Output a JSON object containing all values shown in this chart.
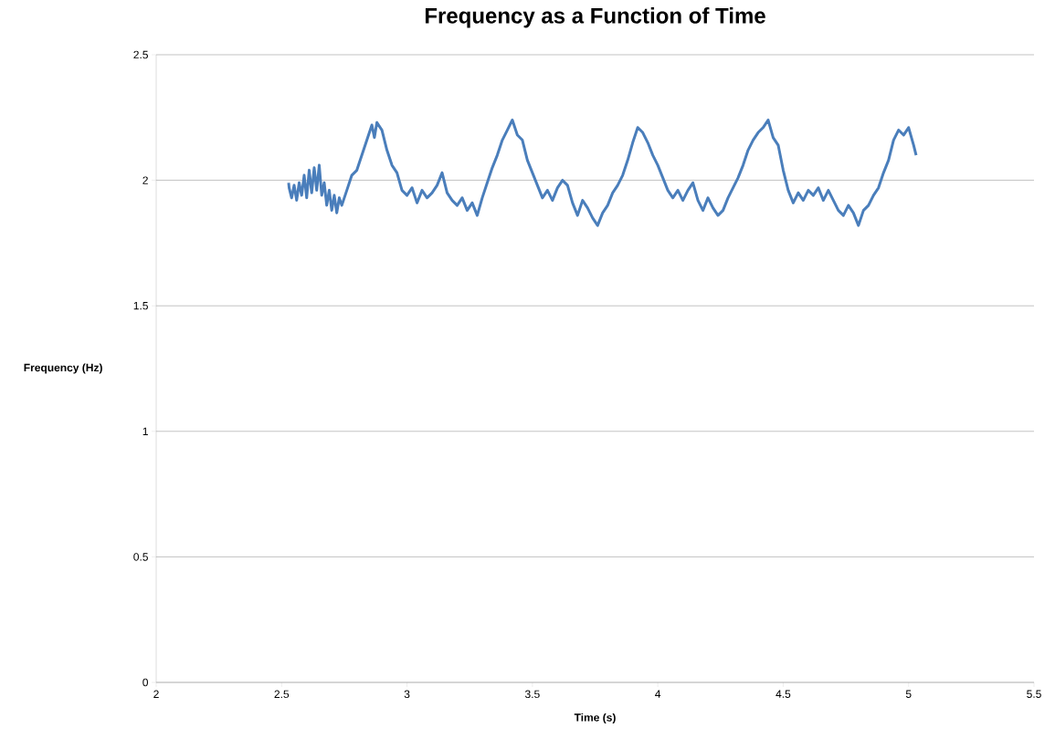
{
  "chart_data": {
    "type": "line",
    "title": "Frequency as a Function of Time",
    "xlabel": "Time (s)",
    "ylabel": "Frequency (Hz)",
    "xlim": [
      2,
      5.5
    ],
    "xticks": [
      2,
      2.5,
      3,
      3.5,
      4,
      4.5,
      5,
      5.5
    ],
    "ylim": [
      0,
      2.5
    ],
    "yticks": [
      0,
      0.5,
      1,
      1.5,
      2,
      2.5
    ],
    "grid": "y",
    "marker": "none",
    "line_style": "solid",
    "series": [
      {
        "color": "#4a7ebb",
        "x": [
          2.528,
          2.53,
          2.54,
          2.55,
          2.56,
          2.57,
          2.58,
          2.59,
          2.6,
          2.61,
          2.62,
          2.63,
          2.64,
          2.65,
          2.66,
          2.67,
          2.68,
          2.69,
          2.7,
          2.71,
          2.72,
          2.73,
          2.74,
          2.76,
          2.78,
          2.8,
          2.82,
          2.84,
          2.86,
          2.87,
          2.88,
          2.9,
          2.92,
          2.94,
          2.96,
          2.98,
          3.0,
          3.02,
          3.04,
          3.06,
          3.08,
          3.1,
          3.12,
          3.14,
          3.16,
          3.18,
          3.2,
          3.22,
          3.24,
          3.26,
          3.28,
          3.3,
          3.32,
          3.34,
          3.36,
          3.38,
          3.4,
          3.42,
          3.44,
          3.46,
          3.48,
          3.5,
          3.52,
          3.54,
          3.56,
          3.58,
          3.6,
          3.62,
          3.64,
          3.66,
          3.68,
          3.7,
          3.72,
          3.74,
          3.76,
          3.78,
          3.8,
          3.82,
          3.84,
          3.86,
          3.88,
          3.9,
          3.92,
          3.94,
          3.96,
          3.98,
          4.0,
          4.02,
          4.04,
          4.06,
          4.08,
          4.1,
          4.12,
          4.14,
          4.16,
          4.18,
          4.2,
          4.22,
          4.24,
          4.26,
          4.28,
          4.3,
          4.32,
          4.34,
          4.36,
          4.38,
          4.4,
          4.42,
          4.44,
          4.46,
          4.48,
          4.5,
          4.52,
          4.54,
          4.56,
          4.58,
          4.6,
          4.62,
          4.64,
          4.66,
          4.68,
          4.7,
          4.72,
          4.74,
          4.76,
          4.78,
          4.8,
          4.82,
          4.84,
          4.86,
          4.88,
          4.9,
          4.92,
          4.94,
          4.96,
          4.98,
          5.0,
          5.02,
          5.03
        ],
        "values": [
          1.99,
          1.97,
          1.93,
          1.98,
          1.92,
          1.99,
          1.94,
          2.02,
          1.93,
          2.04,
          1.95,
          2.05,
          1.96,
          2.06,
          1.94,
          1.99,
          1.9,
          1.96,
          1.88,
          1.94,
          1.87,
          1.93,
          1.9,
          1.96,
          2.02,
          2.04,
          2.1,
          2.16,
          2.22,
          2.17,
          2.23,
          2.2,
          2.12,
          2.06,
          2.03,
          1.96,
          1.94,
          1.97,
          1.91,
          1.96,
          1.93,
          1.95,
          1.98,
          2.03,
          1.95,
          1.92,
          1.9,
          1.93,
          1.88,
          1.91,
          1.86,
          1.93,
          1.99,
          2.05,
          2.1,
          2.16,
          2.2,
          2.24,
          2.18,
          2.16,
          2.08,
          2.03,
          1.98,
          1.93,
          1.96,
          1.92,
          1.97,
          2.0,
          1.98,
          1.91,
          1.86,
          1.92,
          1.89,
          1.85,
          1.82,
          1.87,
          1.9,
          1.95,
          1.98,
          2.02,
          2.08,
          2.15,
          2.21,
          2.19,
          2.15,
          2.1,
          2.06,
          2.01,
          1.96,
          1.93,
          1.96,
          1.92,
          1.96,
          1.99,
          1.92,
          1.88,
          1.93,
          1.89,
          1.86,
          1.88,
          1.93,
          1.97,
          2.01,
          2.06,
          2.12,
          2.16,
          2.19,
          2.21,
          2.24,
          2.17,
          2.14,
          2.04,
          1.96,
          1.91,
          1.95,
          1.92,
          1.96,
          1.94,
          1.97,
          1.92,
          1.96,
          1.92,
          1.88,
          1.86,
          1.9,
          1.87,
          1.82,
          1.88,
          1.9,
          1.94,
          1.97,
          2.03,
          2.08,
          2.16,
          2.2,
          2.18,
          2.21,
          2.14,
          2.1
        ]
      }
    ]
  }
}
